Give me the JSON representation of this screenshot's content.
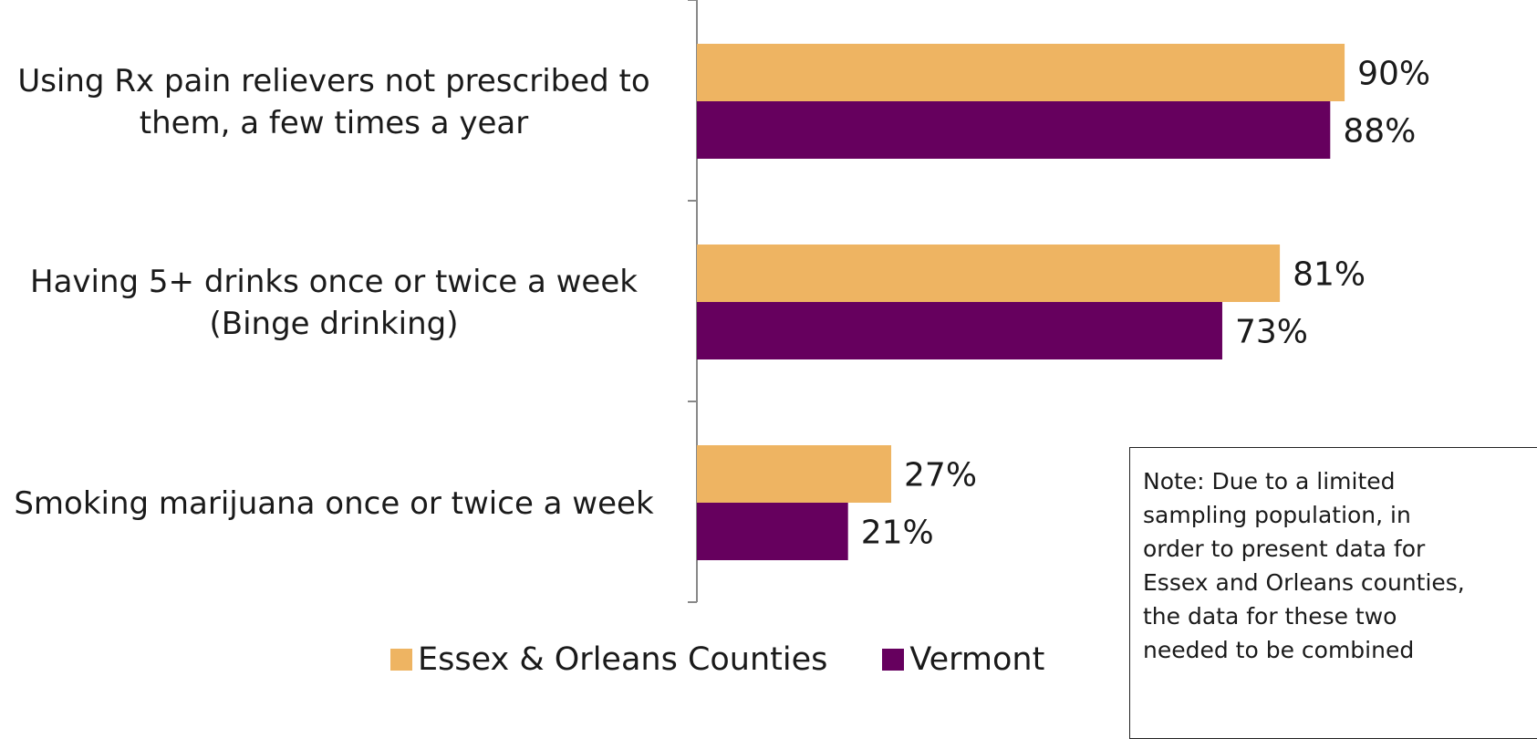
{
  "chart_data": {
    "type": "bar",
    "orientation": "horizontal",
    "categories": [
      [
        "Using Rx pain relievers not prescribed to",
        "them, a few times a year"
      ],
      [
        "Having 5+ drinks once or twice a week",
        "(Binge drinking)"
      ],
      [
        "Smoking marijuana once or twice a week"
      ]
    ],
    "series": [
      {
        "name": "Essex & Orleans Counties",
        "color": "#EEB462",
        "values": [
          90,
          81,
          27
        ],
        "labels": [
          "90%",
          "81%",
          "27%"
        ]
      },
      {
        "name": "Vermont",
        "color": "#66005E",
        "values": [
          88,
          73,
          21
        ],
        "labels": [
          "88%",
          "73%",
          "21%"
        ]
      }
    ],
    "xlim": [
      0,
      100
    ],
    "legend": "bottom",
    "grid": false
  },
  "note": {
    "lines": [
      "Note: Due to a limited",
      "sampling population, in",
      "order to present data for",
      "Essex and Orleans counties,",
      "the data for these two",
      "needed to be combined"
    ]
  }
}
